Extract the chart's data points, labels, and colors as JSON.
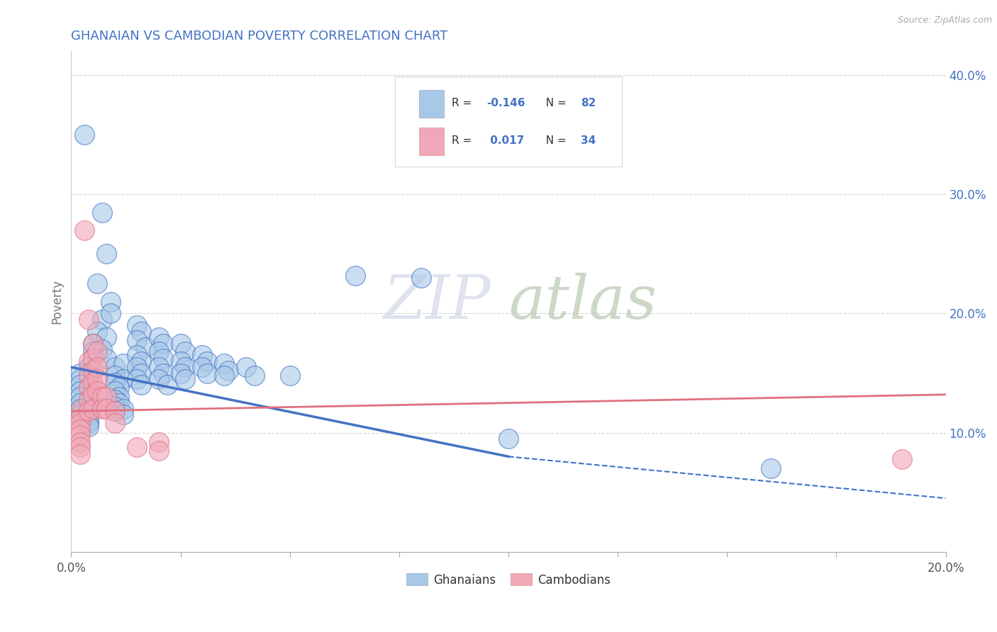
{
  "title": "GHANAIAN VS CAMBODIAN POVERTY CORRELATION CHART",
  "source": "Source: ZipAtlas.com",
  "ylabel": "Poverty",
  "xlim": [
    0.0,
    0.2
  ],
  "ylim": [
    0.0,
    0.42
  ],
  "yticks": [
    0.1,
    0.2,
    0.3,
    0.4
  ],
  "ytick_labels": [
    "10.0%",
    "20.0%",
    "30.0%",
    "40.0%"
  ],
  "blue_color": "#a8c8e8",
  "pink_color": "#f0a8b8",
  "blue_line_color": "#4472c4",
  "pink_line_color": "#e07080",
  "watermark_zip": "ZIP",
  "watermark_atlas": "atlas",
  "background_color": "#ffffff",
  "grid_color": "#c8c8c8",
  "title_color": "#4472c4",
  "legend_text_color": "#4472c4",
  "axis_label_color": "#4472c4",
  "ghanaian_dots": [
    [
      0.003,
      0.35
    ],
    [
      0.007,
      0.285
    ],
    [
      0.008,
      0.25
    ],
    [
      0.006,
      0.225
    ],
    [
      0.009,
      0.21
    ],
    [
      0.007,
      0.195
    ],
    [
      0.009,
      0.2
    ],
    [
      0.006,
      0.185
    ],
    [
      0.008,
      0.18
    ],
    [
      0.005,
      0.175
    ],
    [
      0.007,
      0.17
    ],
    [
      0.005,
      0.168
    ],
    [
      0.008,
      0.162
    ],
    [
      0.01,
      0.155
    ],
    [
      0.012,
      0.158
    ],
    [
      0.01,
      0.148
    ],
    [
      0.012,
      0.145
    ],
    [
      0.01,
      0.142
    ],
    [
      0.011,
      0.138
    ],
    [
      0.01,
      0.135
    ],
    [
      0.011,
      0.13
    ],
    [
      0.01,
      0.128
    ],
    [
      0.011,
      0.125
    ],
    [
      0.01,
      0.122
    ],
    [
      0.012,
      0.12
    ],
    [
      0.01,
      0.118
    ],
    [
      0.012,
      0.115
    ],
    [
      0.004,
      0.155
    ],
    [
      0.004,
      0.15
    ],
    [
      0.004,
      0.145
    ],
    [
      0.004,
      0.14
    ],
    [
      0.004,
      0.135
    ],
    [
      0.004,
      0.13
    ],
    [
      0.004,
      0.125
    ],
    [
      0.004,
      0.12
    ],
    [
      0.004,
      0.115
    ],
    [
      0.004,
      0.11
    ],
    [
      0.004,
      0.108
    ],
    [
      0.004,
      0.105
    ],
    [
      0.002,
      0.15
    ],
    [
      0.002,
      0.145
    ],
    [
      0.002,
      0.14
    ],
    [
      0.002,
      0.135
    ],
    [
      0.002,
      0.13
    ],
    [
      0.002,
      0.125
    ],
    [
      0.002,
      0.12
    ],
    [
      0.002,
      0.115
    ],
    [
      0.015,
      0.19
    ],
    [
      0.016,
      0.185
    ],
    [
      0.015,
      0.178
    ],
    [
      0.017,
      0.172
    ],
    [
      0.015,
      0.165
    ],
    [
      0.016,
      0.16
    ],
    [
      0.015,
      0.155
    ],
    [
      0.016,
      0.15
    ],
    [
      0.015,
      0.145
    ],
    [
      0.016,
      0.14
    ],
    [
      0.02,
      0.18
    ],
    [
      0.021,
      0.175
    ],
    [
      0.02,
      0.168
    ],
    [
      0.021,
      0.162
    ],
    [
      0.02,
      0.155
    ],
    [
      0.021,
      0.15
    ],
    [
      0.02,
      0.145
    ],
    [
      0.022,
      0.14
    ],
    [
      0.025,
      0.175
    ],
    [
      0.026,
      0.168
    ],
    [
      0.025,
      0.16
    ],
    [
      0.026,
      0.155
    ],
    [
      0.025,
      0.15
    ],
    [
      0.026,
      0.145
    ],
    [
      0.03,
      0.165
    ],
    [
      0.031,
      0.16
    ],
    [
      0.03,
      0.155
    ],
    [
      0.031,
      0.15
    ],
    [
      0.035,
      0.158
    ],
    [
      0.036,
      0.152
    ],
    [
      0.035,
      0.148
    ],
    [
      0.04,
      0.155
    ],
    [
      0.042,
      0.148
    ],
    [
      0.05,
      0.148
    ],
    [
      0.065,
      0.232
    ],
    [
      0.08,
      0.23
    ],
    [
      0.1,
      0.095
    ],
    [
      0.16,
      0.07
    ]
  ],
  "cambodian_dots": [
    [
      0.002,
      0.118
    ],
    [
      0.002,
      0.112
    ],
    [
      0.002,
      0.108
    ],
    [
      0.002,
      0.103
    ],
    [
      0.002,
      0.098
    ],
    [
      0.002,
      0.092
    ],
    [
      0.002,
      0.088
    ],
    [
      0.002,
      0.082
    ],
    [
      0.003,
      0.27
    ],
    [
      0.004,
      0.195
    ],
    [
      0.004,
      0.16
    ],
    [
      0.004,
      0.148
    ],
    [
      0.004,
      0.138
    ],
    [
      0.004,
      0.128
    ],
    [
      0.004,
      0.118
    ],
    [
      0.005,
      0.175
    ],
    [
      0.005,
      0.162
    ],
    [
      0.005,
      0.152
    ],
    [
      0.005,
      0.142
    ],
    [
      0.005,
      0.132
    ],
    [
      0.005,
      0.12
    ],
    [
      0.006,
      0.168
    ],
    [
      0.006,
      0.155
    ],
    [
      0.006,
      0.145
    ],
    [
      0.006,
      0.135
    ],
    [
      0.007,
      0.13
    ],
    [
      0.007,
      0.12
    ],
    [
      0.008,
      0.13
    ],
    [
      0.008,
      0.12
    ],
    [
      0.01,
      0.118
    ],
    [
      0.01,
      0.108
    ],
    [
      0.015,
      0.088
    ],
    [
      0.02,
      0.092
    ],
    [
      0.02,
      0.085
    ],
    [
      0.19,
      0.078
    ]
  ]
}
